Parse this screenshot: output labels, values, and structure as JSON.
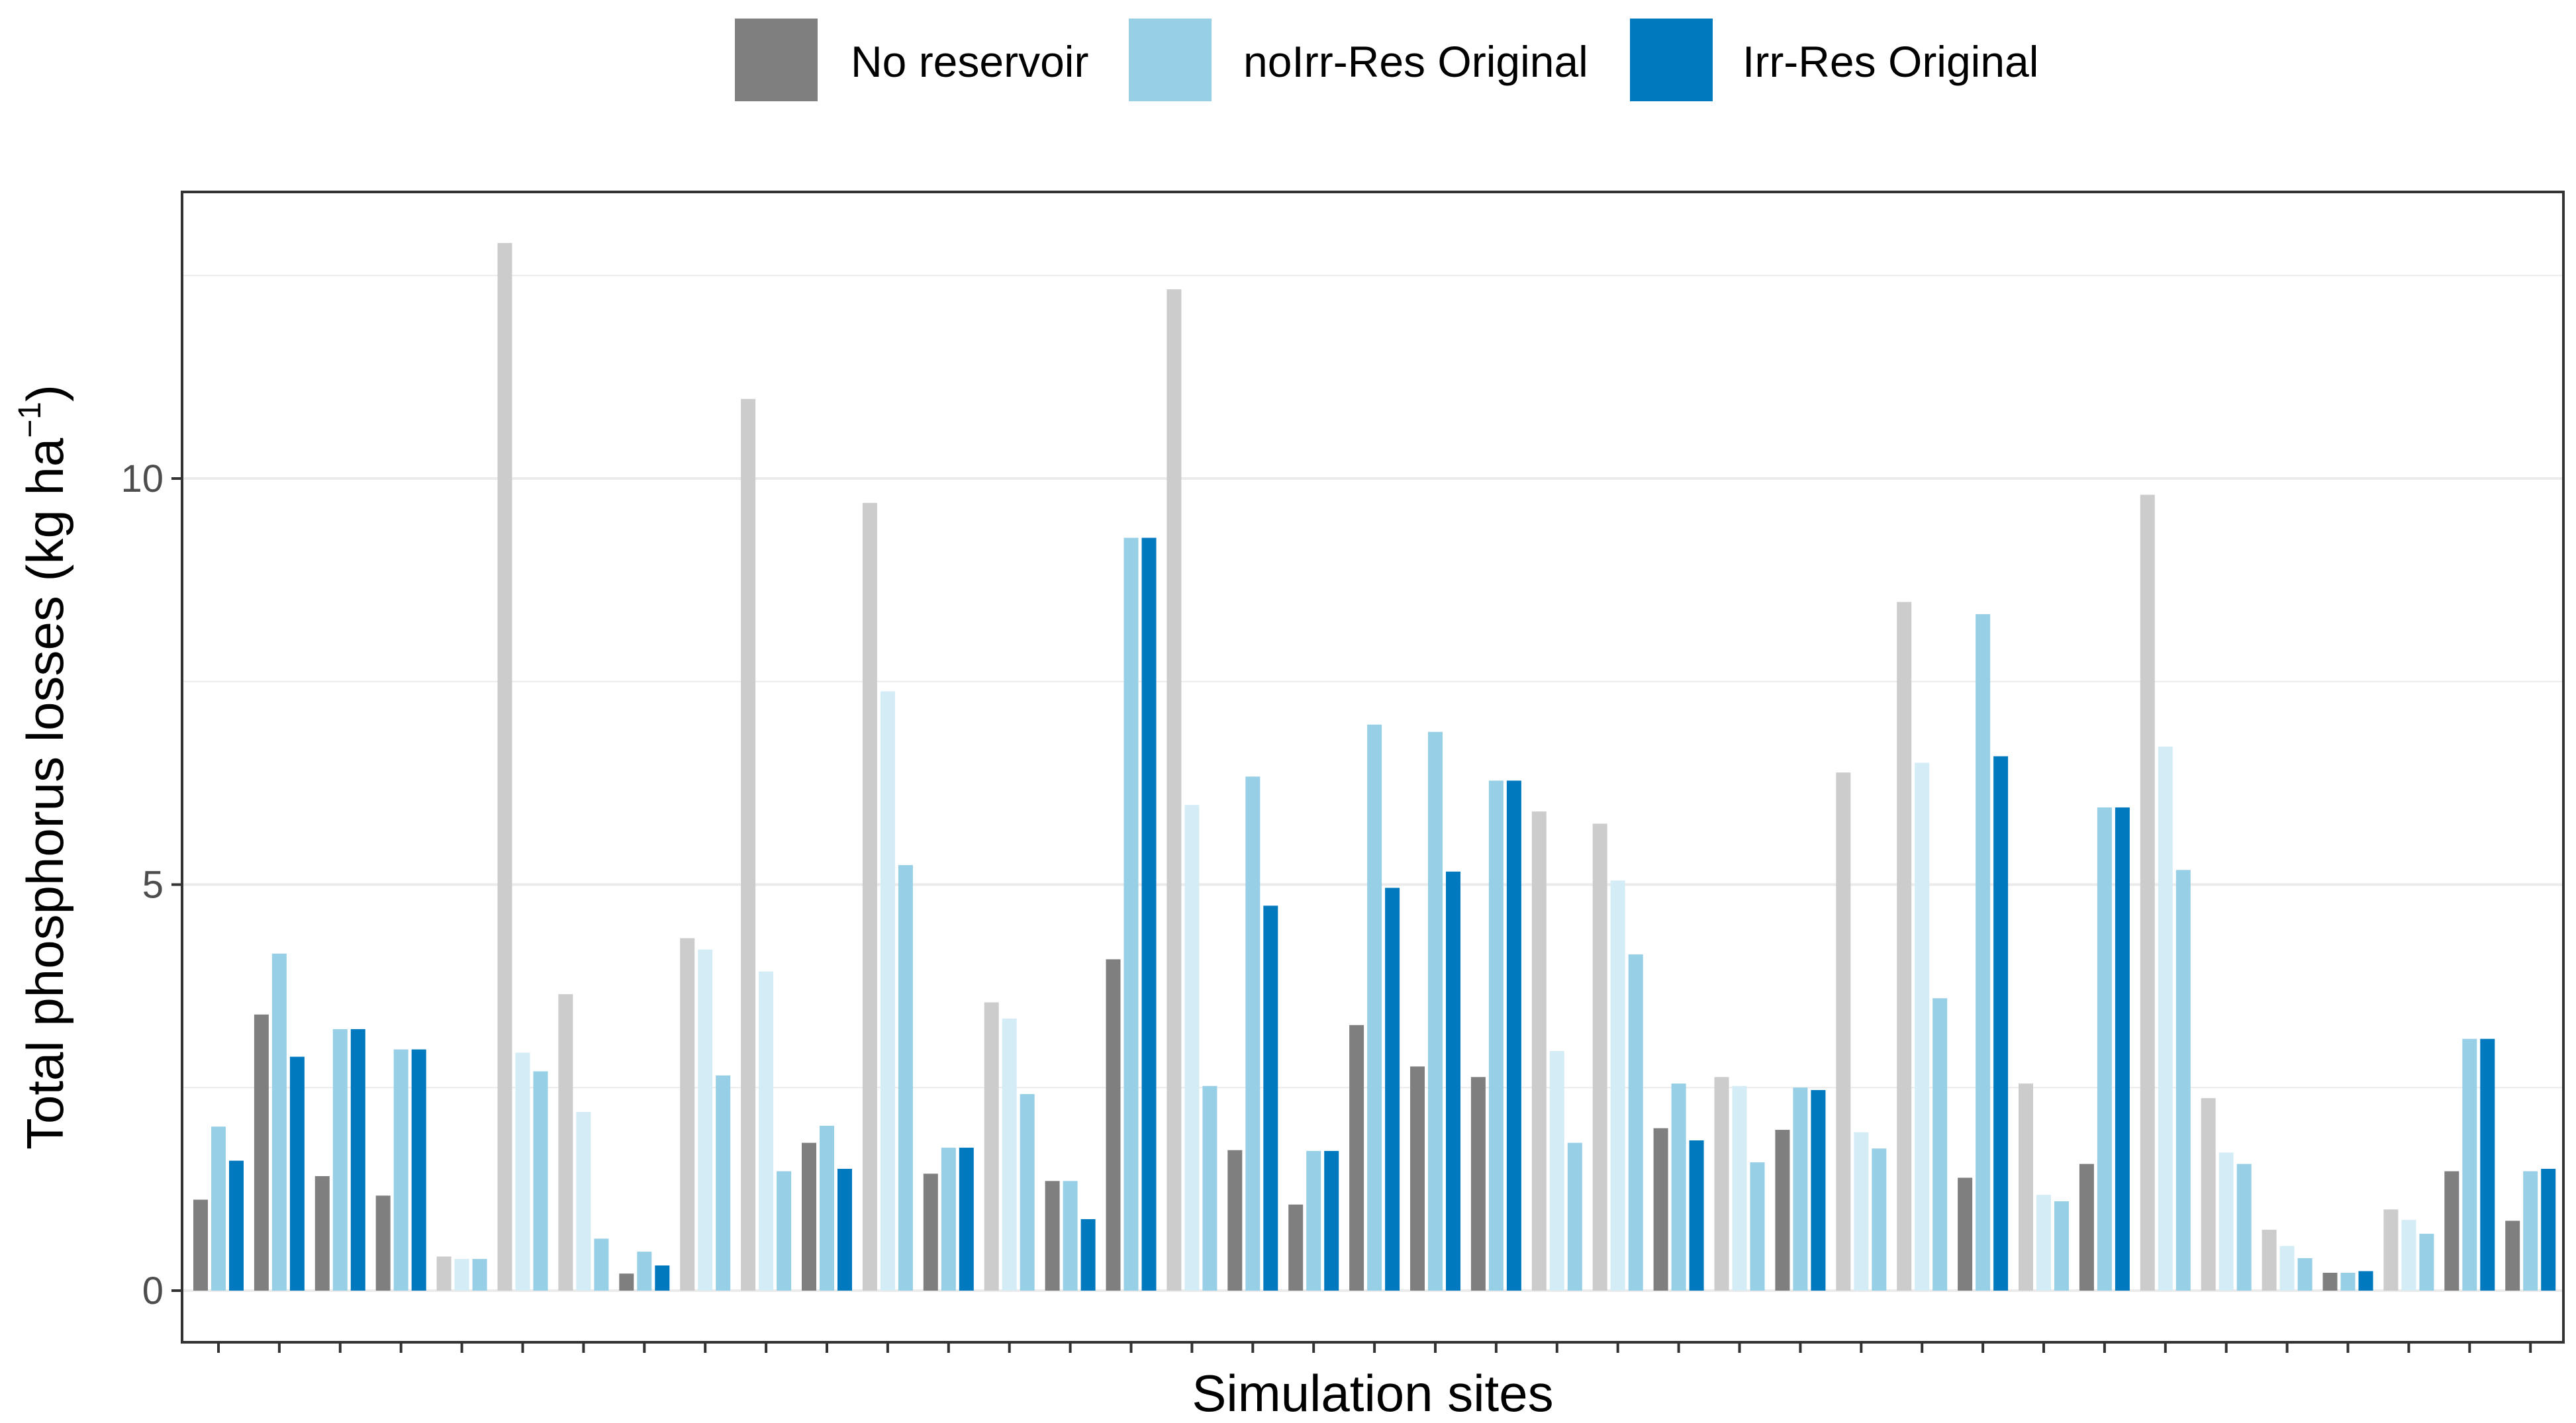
{
  "chart_data": {
    "type": "bar",
    "title": "",
    "xlabel": "Simulation sites",
    "ylabel": {
      "main": "Total phosphorus losses (kg ha",
      "superscript": "−1",
      "close": ")"
    },
    "ylim": [
      0,
      13.5
    ],
    "yticks": [
      0,
      5,
      10
    ],
    "ytick_labels": [
      "0",
      "5",
      "10"
    ],
    "grid": true,
    "legend_position": "top",
    "series": [
      {
        "name": "No reservoir",
        "color": "#7f7f7f",
        "faded_color": "#cccccc"
      },
      {
        "name": "noIrr-Res Original",
        "color": "#96cfe6",
        "faded_color": "#d4ecf6"
      },
      {
        "name": "Irr-Res Original",
        "color": "#0079be",
        "faded_color": "#96cfe6"
      }
    ],
    "sites": [
      {
        "values": [
          1.12,
          2.02,
          1.6
        ],
        "faded": false
      },
      {
        "values": [
          3.4,
          4.15,
          2.88
        ],
        "faded": false
      },
      {
        "values": [
          1.41,
          3.22,
          3.22
        ],
        "faded": false
      },
      {
        "values": [
          1.17,
          2.97,
          2.97
        ],
        "faded": false
      },
      {
        "values": [
          0.42,
          0.39,
          0.39
        ],
        "faded": true
      },
      {
        "values": [
          12.9,
          2.93,
          2.7
        ],
        "faded": true
      },
      {
        "values": [
          3.65,
          2.2,
          0.64
        ],
        "faded": true
      },
      {
        "values": [
          0.21,
          0.48,
          0.31
        ],
        "faded": false
      },
      {
        "values": [
          4.34,
          4.2,
          2.65
        ],
        "faded": true
      },
      {
        "values": [
          10.98,
          3.93,
          1.47
        ],
        "faded": true
      },
      {
        "values": [
          1.82,
          2.03,
          1.5
        ],
        "faded": false
      },
      {
        "values": [
          9.7,
          7.38,
          5.24
        ],
        "faded": true
      },
      {
        "values": [
          1.44,
          1.76,
          1.76
        ],
        "faded": false
      },
      {
        "values": [
          3.55,
          3.35,
          2.42
        ],
        "faded": true
      },
      {
        "values": [
          1.35,
          1.35,
          0.88
        ],
        "faded": false
      },
      {
        "values": [
          4.08,
          9.27,
          9.27
        ],
        "faded": false
      },
      {
        "values": [
          12.33,
          5.98,
          2.52
        ],
        "faded": true
      },
      {
        "values": [
          1.73,
          6.33,
          4.74
        ],
        "faded": false
      },
      {
        "values": [
          1.06,
          1.72,
          1.72
        ],
        "faded": false
      },
      {
        "values": [
          3.27,
          6.97,
          4.96
        ],
        "faded": false
      },
      {
        "values": [
          2.76,
          6.88,
          5.16
        ],
        "faded": false
      },
      {
        "values": [
          2.63,
          6.28,
          6.28
        ],
        "faded": false
      },
      {
        "values": [
          5.9,
          2.95,
          1.82
        ],
        "faded": true
      },
      {
        "values": [
          5.75,
          5.05,
          4.14
        ],
        "faded": true
      },
      {
        "values": [
          2.0,
          2.55,
          1.85
        ],
        "faded": false
      },
      {
        "values": [
          2.63,
          2.52,
          1.58
        ],
        "faded": true
      },
      {
        "values": [
          1.98,
          2.5,
          2.47
        ],
        "faded": false
      },
      {
        "values": [
          6.38,
          1.95,
          1.75
        ],
        "faded": true
      },
      {
        "values": [
          8.48,
          6.5,
          3.6
        ],
        "faded": true
      },
      {
        "values": [
          1.39,
          8.33,
          6.58
        ],
        "faded": false
      },
      {
        "values": [
          2.55,
          1.18,
          1.1
        ],
        "faded": true
      },
      {
        "values": [
          1.56,
          5.95,
          5.95
        ],
        "faded": false
      },
      {
        "values": [
          9.8,
          6.7,
          5.18
        ],
        "faded": true
      },
      {
        "values": [
          2.37,
          1.7,
          1.56
        ],
        "faded": true
      },
      {
        "values": [
          0.75,
          0.55,
          0.4
        ],
        "faded": true
      },
      {
        "values": [
          0.22,
          0.22,
          0.24
        ],
        "faded": false
      },
      {
        "values": [
          1.0,
          0.87,
          0.7
        ],
        "faded": true
      },
      {
        "values": [
          1.47,
          3.1,
          3.1
        ],
        "faded": false
      },
      {
        "values": [
          0.86,
          1.47,
          1.5
        ],
        "faded": false
      }
    ]
  }
}
